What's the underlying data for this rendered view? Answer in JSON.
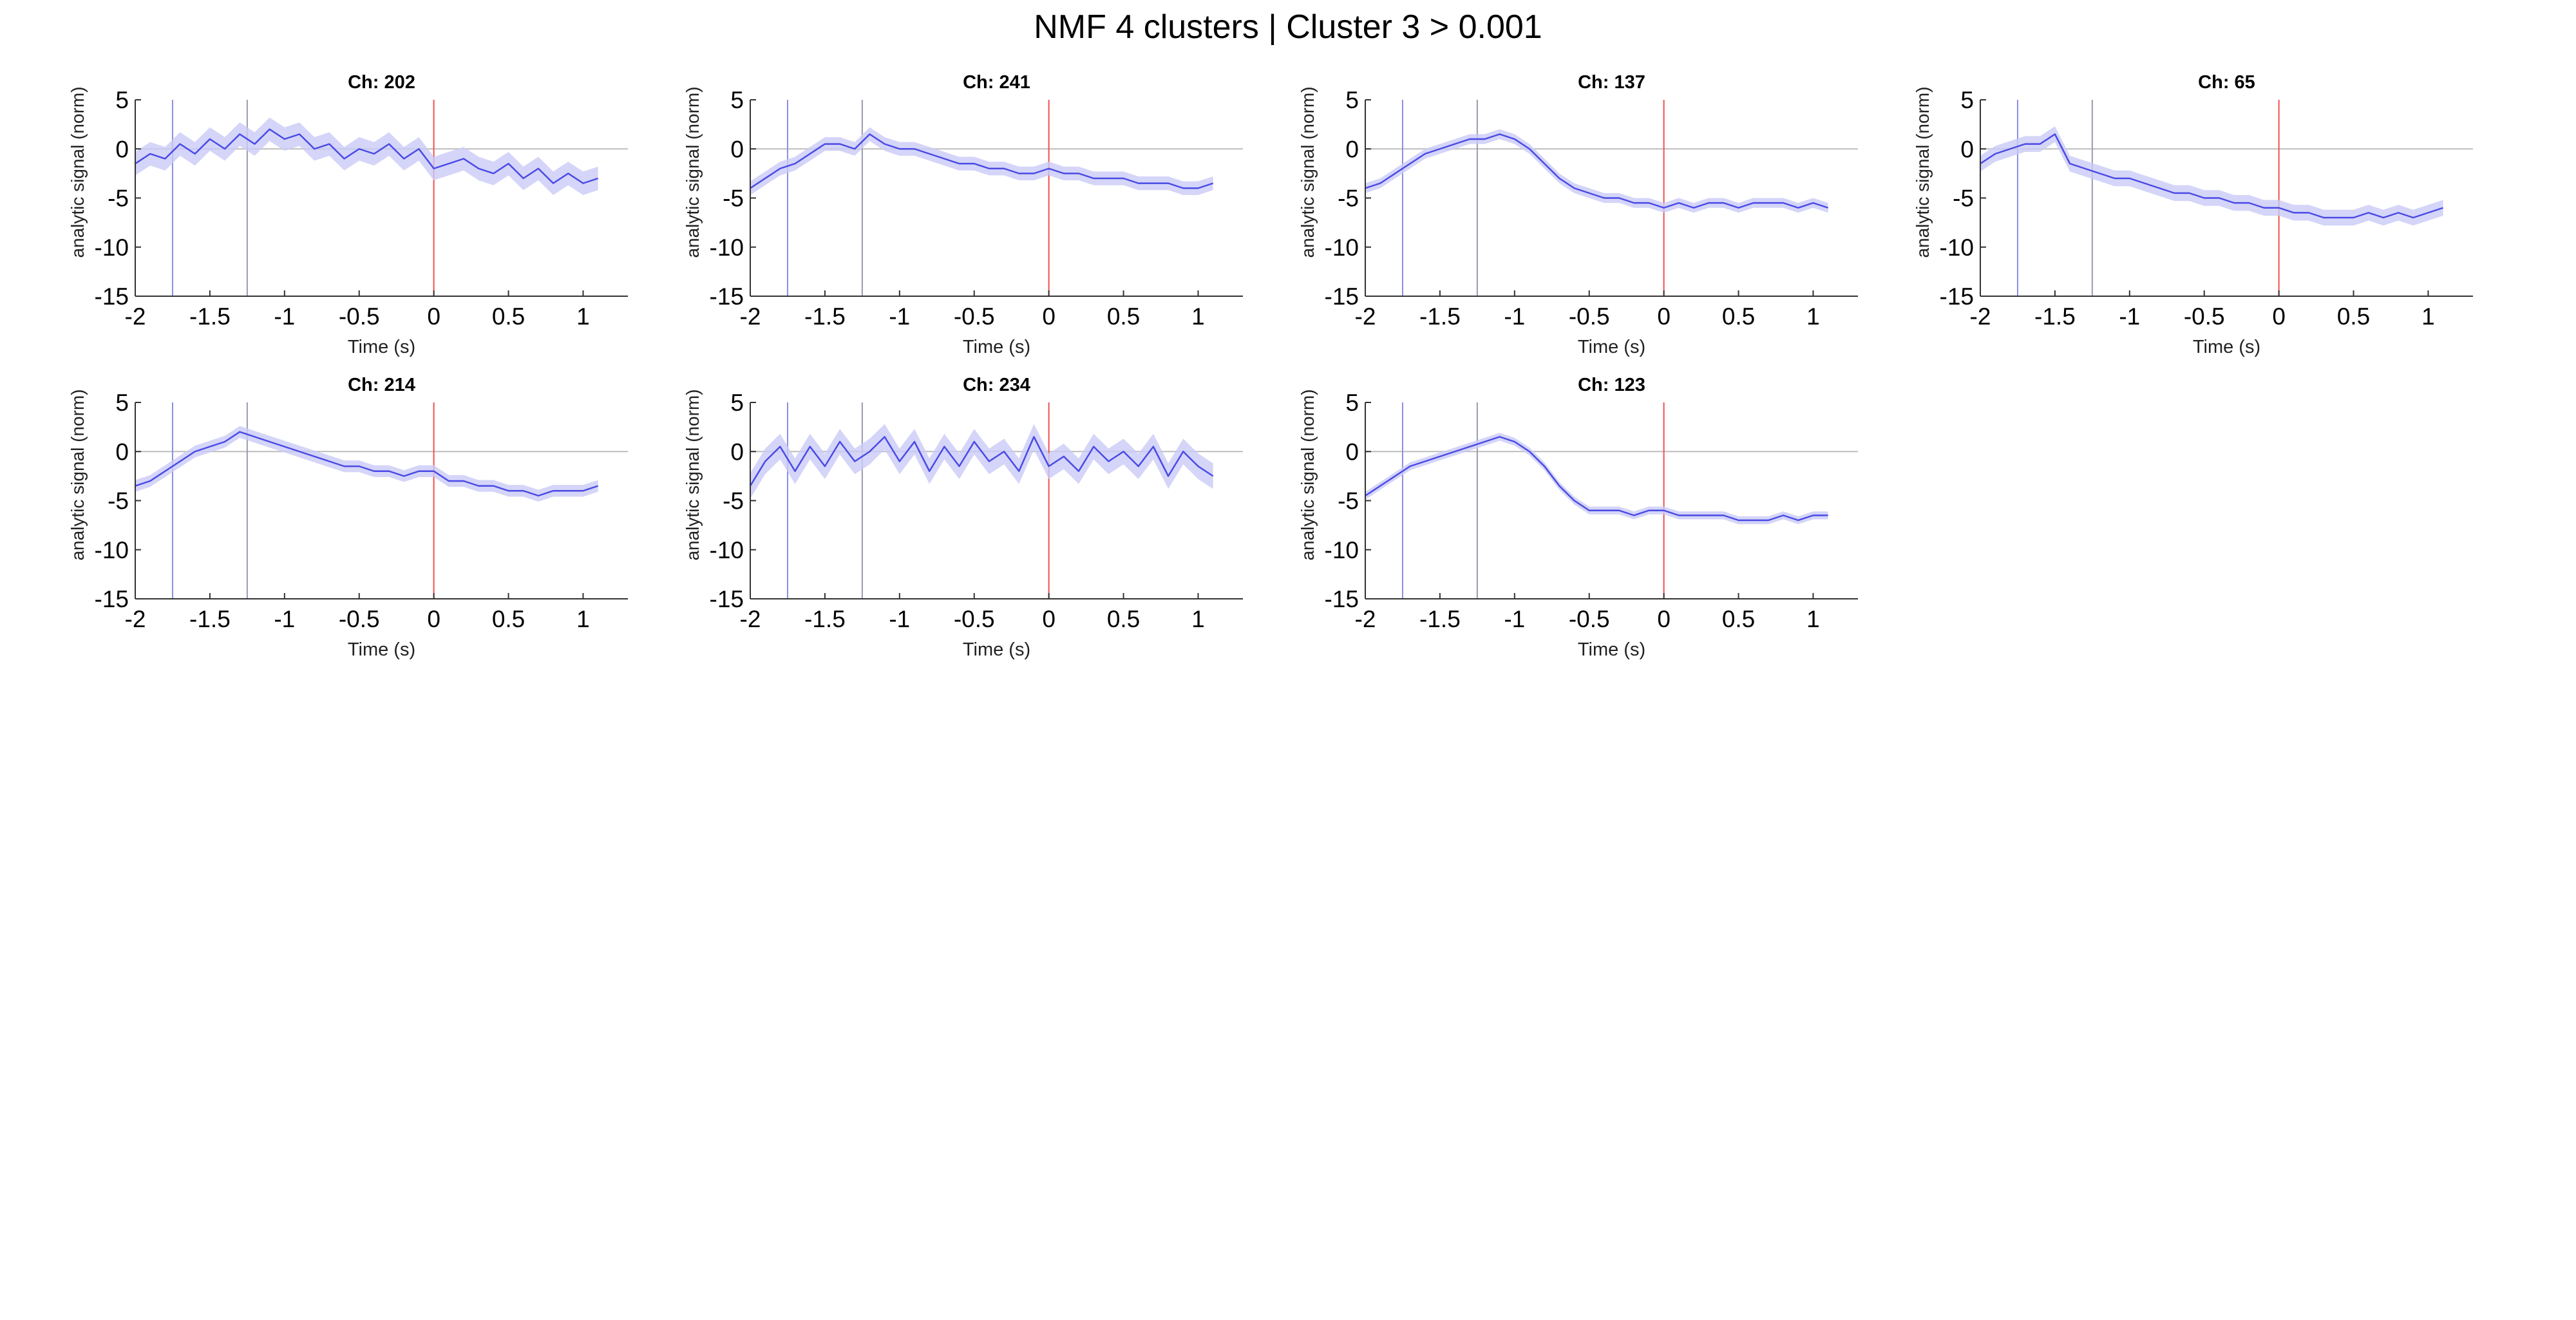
{
  "figure": {
    "title": "NMF 4 clusters | Cluster 3 > 0.001",
    "colors": {
      "signal": "#4a4ae6",
      "band": "#c9caf6",
      "event1": "#8c8ce0",
      "event2": "#9a9ab0",
      "onset": "#f05050",
      "zeroline": "#bdbdbd",
      "axis": "#333333"
    }
  },
  "chart_data": [
    {
      "type": "line",
      "title": "Ch: 202",
      "xlabel": "Time (s)",
      "ylabel": "analytic signal (norm)",
      "xlim": [
        -2,
        1.3
      ],
      "ylim": [
        -15,
        5
      ],
      "xticks": [
        "-2",
        "-1.5",
        "-1",
        "-0.5",
        "0",
        "0.5",
        "1"
      ],
      "yticks": [
        "5",
        "0",
        "-5",
        "-10",
        "-15"
      ],
      "vlines": [
        -1.75,
        -1.25,
        0
      ],
      "series": [
        {
          "x": [
            -2.0,
            -1.9,
            -1.8,
            -1.7,
            -1.6,
            -1.5,
            -1.4,
            -1.3,
            -1.2,
            -1.1,
            -1.0,
            -0.9,
            -0.8,
            -0.7,
            -0.6,
            -0.5,
            -0.4,
            -0.3,
            -0.2,
            -0.1,
            0.0,
            0.1,
            0.2,
            0.3,
            0.4,
            0.5,
            0.6,
            0.7,
            0.8,
            0.9,
            1.0,
            1.1
          ],
          "values": [
            -1.5,
            -0.5,
            -1.0,
            0.5,
            -0.5,
            1.0,
            0.0,
            1.5,
            0.5,
            2.0,
            1.0,
            1.5,
            0.0,
            0.5,
            -1.0,
            0.0,
            -0.5,
            0.5,
            -1.0,
            0.0,
            -2.0,
            -1.5,
            -1.0,
            -2.0,
            -2.5,
            -1.5,
            -3.0,
            -2.0,
            -3.5,
            -2.5,
            -3.5,
            -3.0
          ],
          "error": 1.2
        }
      ]
    },
    {
      "type": "line",
      "title": "Ch: 241",
      "xlabel": "Time (s)",
      "ylabel": "analytic signal (norm)",
      "xlim": [
        -2,
        1.3
      ],
      "ylim": [
        -15,
        5
      ],
      "xticks": [
        "-2",
        "-1.5",
        "-1",
        "-0.5",
        "0",
        "0.5",
        "1"
      ],
      "yticks": [
        "5",
        "0",
        "-5",
        "-10",
        "-15"
      ],
      "vlines": [
        -1.75,
        -1.25,
        0
      ],
      "series": [
        {
          "x": [
            -2.0,
            -1.9,
            -1.8,
            -1.7,
            -1.6,
            -1.5,
            -1.4,
            -1.3,
            -1.2,
            -1.1,
            -1.0,
            -0.9,
            -0.8,
            -0.7,
            -0.6,
            -0.5,
            -0.4,
            -0.3,
            -0.2,
            -0.1,
            0.0,
            0.1,
            0.2,
            0.3,
            0.4,
            0.5,
            0.6,
            0.7,
            0.8,
            0.9,
            1.0,
            1.1
          ],
          "values": [
            -4.0,
            -3.0,
            -2.0,
            -1.5,
            -0.5,
            0.5,
            0.5,
            0.0,
            1.5,
            0.5,
            0.0,
            0.0,
            -0.5,
            -1.0,
            -1.5,
            -1.5,
            -2.0,
            -2.0,
            -2.5,
            -2.5,
            -2.0,
            -2.5,
            -2.5,
            -3.0,
            -3.0,
            -3.0,
            -3.5,
            -3.5,
            -3.5,
            -4.0,
            -4.0,
            -3.5
          ],
          "error": 0.7
        }
      ]
    },
    {
      "type": "line",
      "title": "Ch: 137",
      "xlabel": "Time (s)",
      "ylabel": "analytic signal (norm)",
      "xlim": [
        -2,
        1.3
      ],
      "ylim": [
        -15,
        5
      ],
      "xticks": [
        "-2",
        "-1.5",
        "-1",
        "-0.5",
        "0",
        "0.5",
        "1"
      ],
      "yticks": [
        "5",
        "0",
        "-5",
        "-10",
        "-15"
      ],
      "vlines": [
        -1.75,
        -1.25,
        0
      ],
      "series": [
        {
          "x": [
            -2.0,
            -1.9,
            -1.8,
            -1.7,
            -1.6,
            -1.5,
            -1.4,
            -1.3,
            -1.2,
            -1.1,
            -1.0,
            -0.9,
            -0.8,
            -0.7,
            -0.6,
            -0.5,
            -0.4,
            -0.3,
            -0.2,
            -0.1,
            0.0,
            0.1,
            0.2,
            0.3,
            0.4,
            0.5,
            0.6,
            0.7,
            0.8,
            0.9,
            1.0,
            1.1
          ],
          "values": [
            -4.0,
            -3.5,
            -2.5,
            -1.5,
            -0.5,
            0.0,
            0.5,
            1.0,
            1.0,
            1.5,
            1.0,
            0.0,
            -1.5,
            -3.0,
            -4.0,
            -4.5,
            -5.0,
            -5.0,
            -5.5,
            -5.5,
            -6.0,
            -5.5,
            -6.0,
            -5.5,
            -5.5,
            -6.0,
            -5.5,
            -5.5,
            -5.5,
            -6.0,
            -5.5,
            -6.0
          ],
          "error": 0.5
        }
      ]
    },
    {
      "type": "line",
      "title": "Ch: 65",
      "xlabel": "Time (s)",
      "ylabel": "analytic signal (norm)",
      "xlim": [
        -2,
        1.3
      ],
      "ylim": [
        -15,
        5
      ],
      "xticks": [
        "-2",
        "-1.5",
        "-1",
        "-0.5",
        "0",
        "0.5",
        "1"
      ],
      "yticks": [
        "5",
        "0",
        "-5",
        "-10",
        "-15"
      ],
      "vlines": [
        -1.75,
        -1.25,
        0
      ],
      "series": [
        {
          "x": [
            -2.0,
            -1.9,
            -1.8,
            -1.7,
            -1.6,
            -1.5,
            -1.4,
            -1.3,
            -1.2,
            -1.1,
            -1.0,
            -0.9,
            -0.8,
            -0.7,
            -0.6,
            -0.5,
            -0.4,
            -0.3,
            -0.2,
            -0.1,
            0.0,
            0.1,
            0.2,
            0.3,
            0.4,
            0.5,
            0.6,
            0.7,
            0.8,
            0.9,
            1.0,
            1.1
          ],
          "values": [
            -1.5,
            -0.5,
            0.0,
            0.5,
            0.5,
            1.5,
            -1.5,
            -2.0,
            -2.5,
            -3.0,
            -3.0,
            -3.5,
            -4.0,
            -4.5,
            -4.5,
            -5.0,
            -5.0,
            -5.5,
            -5.5,
            -6.0,
            -6.0,
            -6.5,
            -6.5,
            -7.0,
            -7.0,
            -7.0,
            -6.5,
            -7.0,
            -6.5,
            -7.0,
            -6.5,
            -6.0
          ],
          "error": 0.8
        }
      ]
    },
    {
      "type": "line",
      "title": "Ch: 214",
      "xlabel": "Time (s)",
      "ylabel": "analytic signal (norm)",
      "xlim": [
        -2,
        1.3
      ],
      "ylim": [
        -15,
        5
      ],
      "xticks": [
        "-2",
        "-1.5",
        "-1",
        "-0.5",
        "0",
        "0.5",
        "1"
      ],
      "yticks": [
        "5",
        "0",
        "-5",
        "-10",
        "-15"
      ],
      "vlines": [
        -1.75,
        -1.25,
        0
      ],
      "series": [
        {
          "x": [
            -2.0,
            -1.9,
            -1.8,
            -1.7,
            -1.6,
            -1.5,
            -1.4,
            -1.3,
            -1.2,
            -1.1,
            -1.0,
            -0.9,
            -0.8,
            -0.7,
            -0.6,
            -0.5,
            -0.4,
            -0.3,
            -0.2,
            -0.1,
            0.0,
            0.1,
            0.2,
            0.3,
            0.4,
            0.5,
            0.6,
            0.7,
            0.8,
            0.9,
            1.0,
            1.1
          ],
          "values": [
            -3.5,
            -3.0,
            -2.0,
            -1.0,
            0.0,
            0.5,
            1.0,
            2.0,
            1.5,
            1.0,
            0.5,
            0.0,
            -0.5,
            -1.0,
            -1.5,
            -1.5,
            -2.0,
            -2.0,
            -2.5,
            -2.0,
            -2.0,
            -3.0,
            -3.0,
            -3.5,
            -3.5,
            -4.0,
            -4.0,
            -4.5,
            -4.0,
            -4.0,
            -4.0,
            -3.5
          ],
          "error": 0.6
        }
      ]
    },
    {
      "type": "line",
      "title": "Ch: 234",
      "xlabel": "Time (s)",
      "ylabel": "analytic signal (norm)",
      "xlim": [
        -2,
        1.3
      ],
      "ylim": [
        -15,
        5
      ],
      "xticks": [
        "-2",
        "-1.5",
        "-1",
        "-0.5",
        "0",
        "0.5",
        "1"
      ],
      "yticks": [
        "5",
        "0",
        "-5",
        "-10",
        "-15"
      ],
      "vlines": [
        -1.75,
        -1.25,
        0
      ],
      "series": [
        {
          "x": [
            -2.0,
            -1.9,
            -1.8,
            -1.7,
            -1.6,
            -1.5,
            -1.4,
            -1.3,
            -1.2,
            -1.1,
            -1.0,
            -0.9,
            -0.8,
            -0.7,
            -0.6,
            -0.5,
            -0.4,
            -0.3,
            -0.2,
            -0.1,
            0.0,
            0.1,
            0.2,
            0.3,
            0.4,
            0.5,
            0.6,
            0.7,
            0.8,
            0.9,
            1.0,
            1.1
          ],
          "values": [
            -3.5,
            -1.0,
            0.5,
            -2.0,
            0.5,
            -1.5,
            1.0,
            -1.0,
            0.0,
            1.5,
            -1.0,
            1.0,
            -2.0,
            0.5,
            -1.5,
            1.0,
            -1.0,
            0.0,
            -2.0,
            1.5,
            -1.5,
            -0.5,
            -2.0,
            0.5,
            -1.0,
            0.0,
            -1.5,
            0.5,
            -2.5,
            0.0,
            -1.5,
            -2.5
          ],
          "error": 1.3
        }
      ]
    },
    {
      "type": "line",
      "title": "Ch: 123",
      "xlabel": "Time (s)",
      "ylabel": "analytic signal (norm)",
      "xlim": [
        -2,
        1.3
      ],
      "ylim": [
        -15,
        5
      ],
      "xticks": [
        "-2",
        "-1.5",
        "-1",
        "-0.5",
        "0",
        "0.5",
        "1"
      ],
      "yticks": [
        "5",
        "0",
        "-5",
        "-10",
        "-15"
      ],
      "vlines": [
        -1.75,
        -1.25,
        0
      ],
      "series": [
        {
          "x": [
            -2.0,
            -1.9,
            -1.8,
            -1.7,
            -1.6,
            -1.5,
            -1.4,
            -1.3,
            -1.2,
            -1.1,
            -1.0,
            -0.9,
            -0.8,
            -0.7,
            -0.6,
            -0.5,
            -0.4,
            -0.3,
            -0.2,
            -0.1,
            0.0,
            0.1,
            0.2,
            0.3,
            0.4,
            0.5,
            0.6,
            0.7,
            0.8,
            0.9,
            1.0,
            1.1
          ],
          "values": [
            -4.5,
            -3.5,
            -2.5,
            -1.5,
            -1.0,
            -0.5,
            0.0,
            0.5,
            1.0,
            1.5,
            1.0,
            0.0,
            -1.5,
            -3.5,
            -5.0,
            -6.0,
            -6.0,
            -6.0,
            -6.5,
            -6.0,
            -6.0,
            -6.5,
            -6.5,
            -6.5,
            -6.5,
            -7.0,
            -7.0,
            -7.0,
            -6.5,
            -7.0,
            -6.5,
            -6.5
          ],
          "error": 0.4
        }
      ]
    }
  ]
}
